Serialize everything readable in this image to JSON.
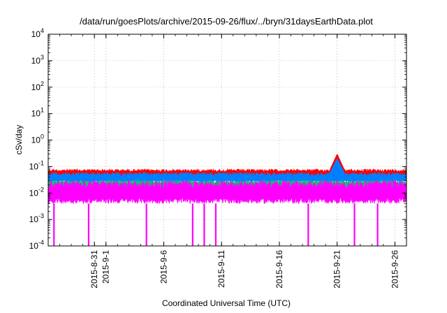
{
  "chart_data": {
    "type": "line",
    "title": "/data/run/goesPlots/archive/2015-09-26/flux/../bryn/31daysEarthData.plot",
    "xlabel": "Coordinated Universal Time (UTC)",
    "ylabel": "cSv/day",
    "yscale": "log",
    "ylim": [
      0.0001,
      10000
    ],
    "xlim": [
      "2015-08-27",
      "2015-09-27"
    ],
    "grid": true,
    "y_ticks": [
      {
        "value": 0.0001,
        "base": "10",
        "exp": "-4"
      },
      {
        "value": 0.001,
        "base": "10",
        "exp": "-3"
      },
      {
        "value": 0.01,
        "base": "10",
        "exp": "-2"
      },
      {
        "value": 0.1,
        "base": "10",
        "exp": "-1"
      },
      {
        "value": 1,
        "base": "10",
        "exp": "0"
      },
      {
        "value": 10,
        "base": "10",
        "exp": "1"
      },
      {
        "value": 100,
        "base": "10",
        "exp": "2"
      },
      {
        "value": 1000,
        "base": "10",
        "exp": "3"
      },
      {
        "value": 10000,
        "base": "10",
        "exp": "4"
      }
    ],
    "x_ticks": [
      {
        "date": "2015-08-31",
        "label": "2015-8-31"
      },
      {
        "date": "2015-09-01",
        "label": "2015-9-1"
      },
      {
        "date": "2015-09-06",
        "label": "2015-9-6"
      },
      {
        "date": "2015-09-11",
        "label": "2015-9-11"
      },
      {
        "date": "2015-09-16",
        "label": "2015-9-16"
      },
      {
        "date": "2015-09-21",
        "label": "2015-9-21"
      },
      {
        "date": "2015-09-26",
        "label": "2015-9-26"
      }
    ],
    "series": [
      {
        "color": "#ff0000",
        "typical_range": [
          0.04,
          0.08
        ],
        "peaks": [
          {
            "date": "2015-09-21",
            "value": 0.3
          }
        ]
      },
      {
        "color": "#0080ff",
        "typical_range": [
          0.025,
          0.06
        ],
        "peaks": [
          {
            "date": "2015-09-21",
            "value": 0.2
          }
        ]
      },
      {
        "color": "#00cc66",
        "typical_range": [
          0.015,
          0.03
        ]
      },
      {
        "color": "#ff00ff",
        "typical_range": [
          0.004,
          0.03
        ],
        "dropouts": [
          "2015-08-27",
          "2015-08-30",
          "2015-09-04",
          "2015-09-08",
          "2015-09-09",
          "2015-09-10",
          "2015-09-18",
          "2015-09-22",
          "2015-09-24"
        ]
      }
    ]
  }
}
